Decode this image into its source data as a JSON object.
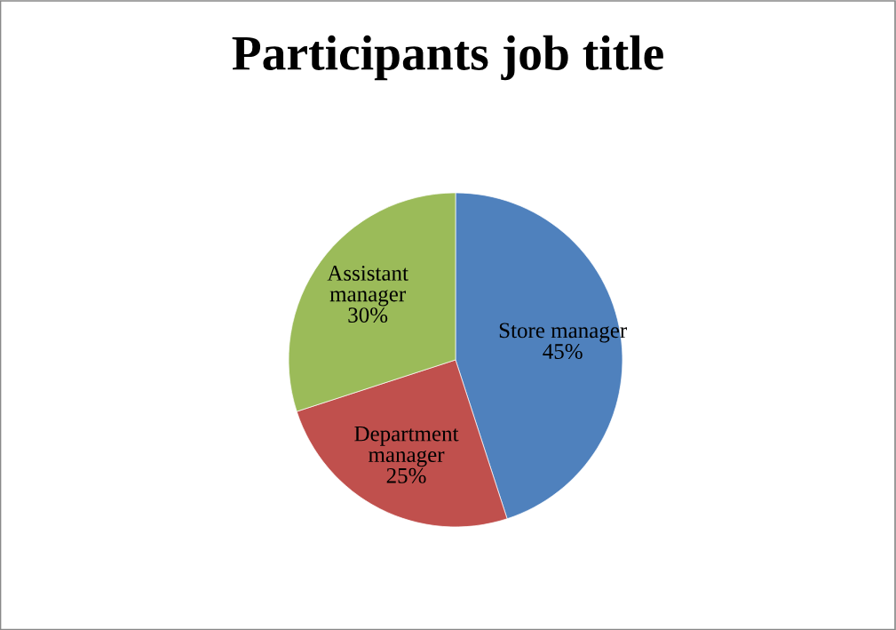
{
  "chart_data": {
    "type": "pie",
    "title": "Participants job title",
    "categories": [
      "Store manager",
      "Department\nmanager",
      "Assistant\nmanager"
    ],
    "values": [
      45,
      25,
      30
    ],
    "colors": [
      "#4f81bd",
      "#c0504d",
      "#9bbb59"
    ],
    "value_labels": [
      "45%",
      "25%",
      "30%"
    ],
    "legend": false
  }
}
